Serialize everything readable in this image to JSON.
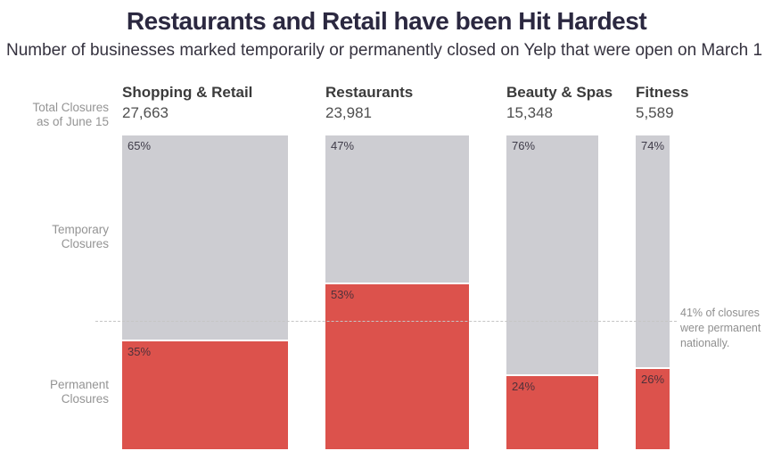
{
  "header": {
    "title": "Restaurants and Retail have been Hit Hardest",
    "subtitle": "Number of businesses marked temporarily or permanently closed on Yelp that were open on March 1"
  },
  "row_labels": {
    "total": "Total Closures\nas of June 15",
    "temporary": "Temporary\nClosures",
    "permanent": "Permanent\nClosures"
  },
  "annotation": {
    "text": "41% of closures\nwere permanent\nnationally."
  },
  "colors": {
    "temporary_bar": "#CDCDD2",
    "permanent_bar": "#DC524C",
    "title_text": "#2B2840",
    "reference_line": "#C5C5C5"
  },
  "chart_data": {
    "type": "bar",
    "variant": "variable-width-stacked-percentage",
    "title": "Restaurants and Retail have been Hit Hardest",
    "subtitle": "Number of businesses marked temporarily or permanently closed on Yelp that were open on March 1",
    "categories": [
      "Shopping & Retail",
      "Restaurants",
      "Beauty & Spas",
      "Fitness"
    ],
    "totals": [
      27663,
      23981,
      15348,
      5589
    ],
    "totals_display": [
      "27,663",
      "23,981",
      "15,348",
      "5,589"
    ],
    "series": [
      {
        "name": "Temporary Closures",
        "values": [
          65,
          47,
          76,
          74
        ],
        "color": "#CDCDD2"
      },
      {
        "name": "Permanent Closures",
        "values": [
          35,
          53,
          24,
          26
        ],
        "color": "#DC524C"
      }
    ],
    "unit": "%",
    "bar_width_proportional_to": "totals",
    "ylim": [
      0,
      100
    ],
    "grid": false,
    "legend_position": "left-row-labels",
    "reference_line": {
      "value_pct_from_bottom": 41,
      "label": "41% of closures were permanent nationally."
    }
  }
}
